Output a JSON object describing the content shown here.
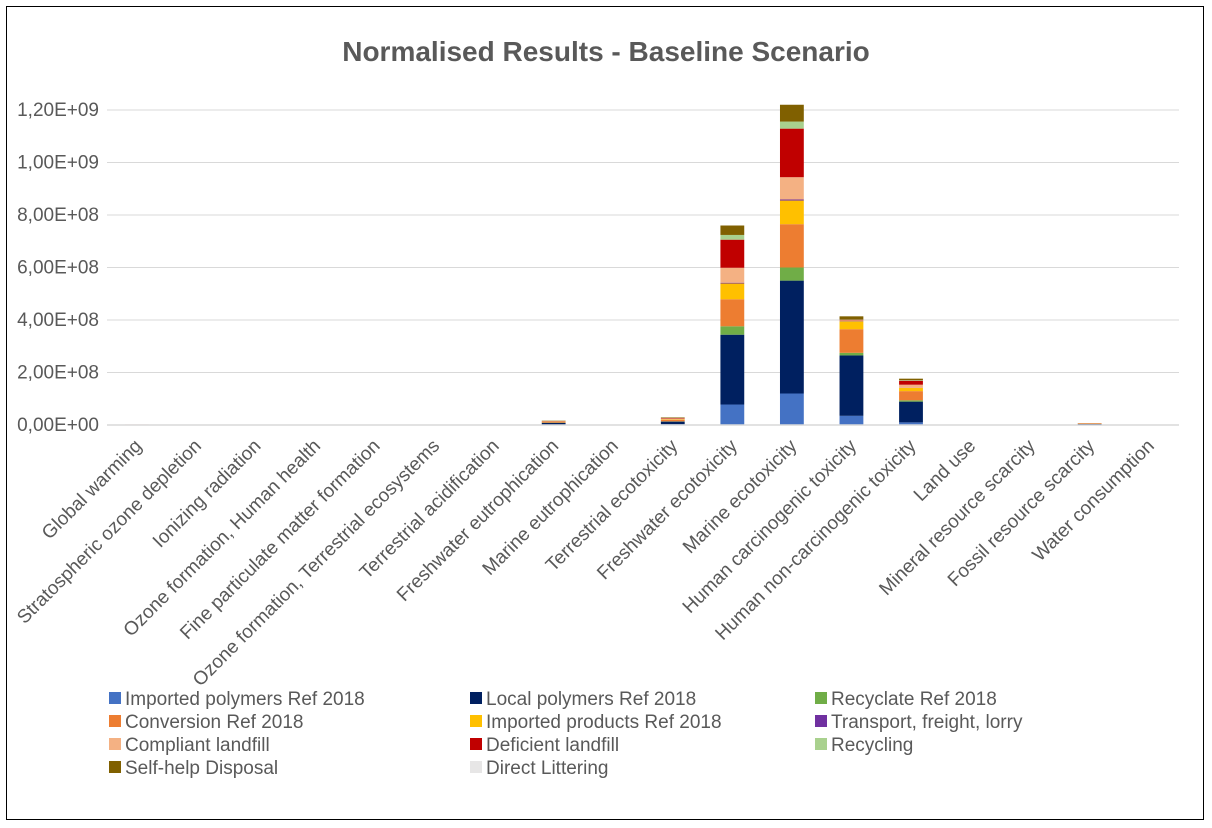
{
  "chart_data": {
    "type": "bar",
    "stacked": true,
    "title": "Normalised Results - Baseline Scenario",
    "xlabel": "",
    "ylabel": "",
    "ylim": [
      0,
      1200000000
    ],
    "yticks": [
      0,
      200000000,
      400000000,
      600000000,
      800000000,
      1000000000,
      1200000000
    ],
    "ytick_labels": [
      "0,00E+00",
      "2,00E+08",
      "4,00E+08",
      "6,00E+08",
      "8,00E+08",
      "1,00E+09",
      "1,20E+09"
    ],
    "grid": true,
    "legend_position": "bottom",
    "categories": [
      "Global warming",
      "Stratospheric ozone depletion",
      "Ionizing radiation",
      "Ozone formation, Human health",
      "Fine particulate matter formation",
      "Ozone formation, Terrestrial ecosystems",
      "Terrestrial acidification",
      "Freshwater eutrophication",
      "Marine eutrophication",
      "Terrestrial ecotoxicity",
      "Freshwater ecotoxicity",
      "Marine ecotoxicity",
      "Human carcinogenic toxicity",
      "Human non-carcinogenic toxicity",
      "Land use",
      "Mineral resource scarcity",
      "Fossil resource scarcity",
      "Water consumption"
    ],
    "series": [
      {
        "name": "Imported polymers Ref 2018",
        "color": "#4472C4",
        "values": [
          500000,
          300000,
          100000,
          200000,
          300000,
          200000,
          200000,
          2000000,
          100000,
          3000000,
          78000000,
          120000000,
          35000000,
          10000000,
          200000,
          50000,
          1000000,
          100000
        ]
      },
      {
        "name": "Local polymers Ref 2018",
        "color": "#002060",
        "values": [
          1000000,
          500000,
          200000,
          500000,
          500000,
          500000,
          400000,
          6000000,
          200000,
          10000000,
          266000000,
          430000000,
          230000000,
          79000000,
          500000,
          100000,
          3000000,
          200000
        ]
      },
      {
        "name": "Recyclate Ref 2018",
        "color": "#70AD47",
        "values": [
          100000,
          50000,
          0,
          50000,
          50000,
          50000,
          50000,
          1000000,
          0,
          1000000,
          32000000,
          50000000,
          10000000,
          5000000,
          50000,
          0,
          200000,
          0
        ]
      },
      {
        "name": "Conversion Ref 2018",
        "color": "#ED7D31",
        "values": [
          200000,
          100000,
          100000,
          100000,
          200000,
          100000,
          100000,
          3000000,
          100000,
          6000000,
          103000000,
          165000000,
          90000000,
          35000000,
          200000,
          50000,
          2000000,
          100000
        ]
      },
      {
        "name": "Imported products Ref 2018",
        "color": "#FFC000",
        "values": [
          100000,
          50000,
          0,
          50000,
          50000,
          50000,
          50000,
          1000000,
          0,
          2000000,
          60000000,
          90000000,
          30000000,
          12000000,
          50000,
          0,
          500000,
          0
        ]
      },
      {
        "name": "Transport, freight, lorry",
        "color": "#7030A0",
        "values": [
          50000,
          0,
          0,
          0,
          0,
          0,
          0,
          200000,
          0,
          300000,
          3000000,
          4000000,
          1000000,
          500000,
          0,
          0,
          100000,
          0
        ]
      },
      {
        "name": "Compliant landfill",
        "color": "#F4B183",
        "values": [
          50000,
          0,
          0,
          0,
          0,
          0,
          0,
          1000000,
          0,
          2000000,
          57000000,
          85000000,
          3000000,
          12000000,
          0,
          0,
          200000,
          0
        ]
      },
      {
        "name": "Deficient landfill",
        "color": "#C00000",
        "values": [
          50000,
          0,
          0,
          0,
          0,
          0,
          0,
          1000000,
          0,
          2000000,
          107000000,
          185000000,
          2000000,
          15000000,
          0,
          0,
          200000,
          0
        ]
      },
      {
        "name": "Recycling",
        "color": "#A9D18E",
        "values": [
          20000,
          0,
          0,
          0,
          0,
          0,
          0,
          500000,
          0,
          500000,
          18000000,
          27000000,
          1000000,
          2000000,
          0,
          0,
          100000,
          0
        ]
      },
      {
        "name": "Self-help Disposal",
        "color": "#806000",
        "values": [
          30000,
          0,
          0,
          0,
          0,
          0,
          0,
          1000000,
          0,
          2000000,
          36000000,
          64000000,
          12000000,
          6000000,
          0,
          0,
          200000,
          0
        ]
      },
      {
        "name": "Direct Littering",
        "color": "#E7E6E6",
        "values": [
          0,
          0,
          0,
          0,
          0,
          0,
          0,
          0,
          0,
          0,
          0,
          0,
          0,
          0,
          0,
          0,
          0,
          0
        ]
      }
    ]
  }
}
